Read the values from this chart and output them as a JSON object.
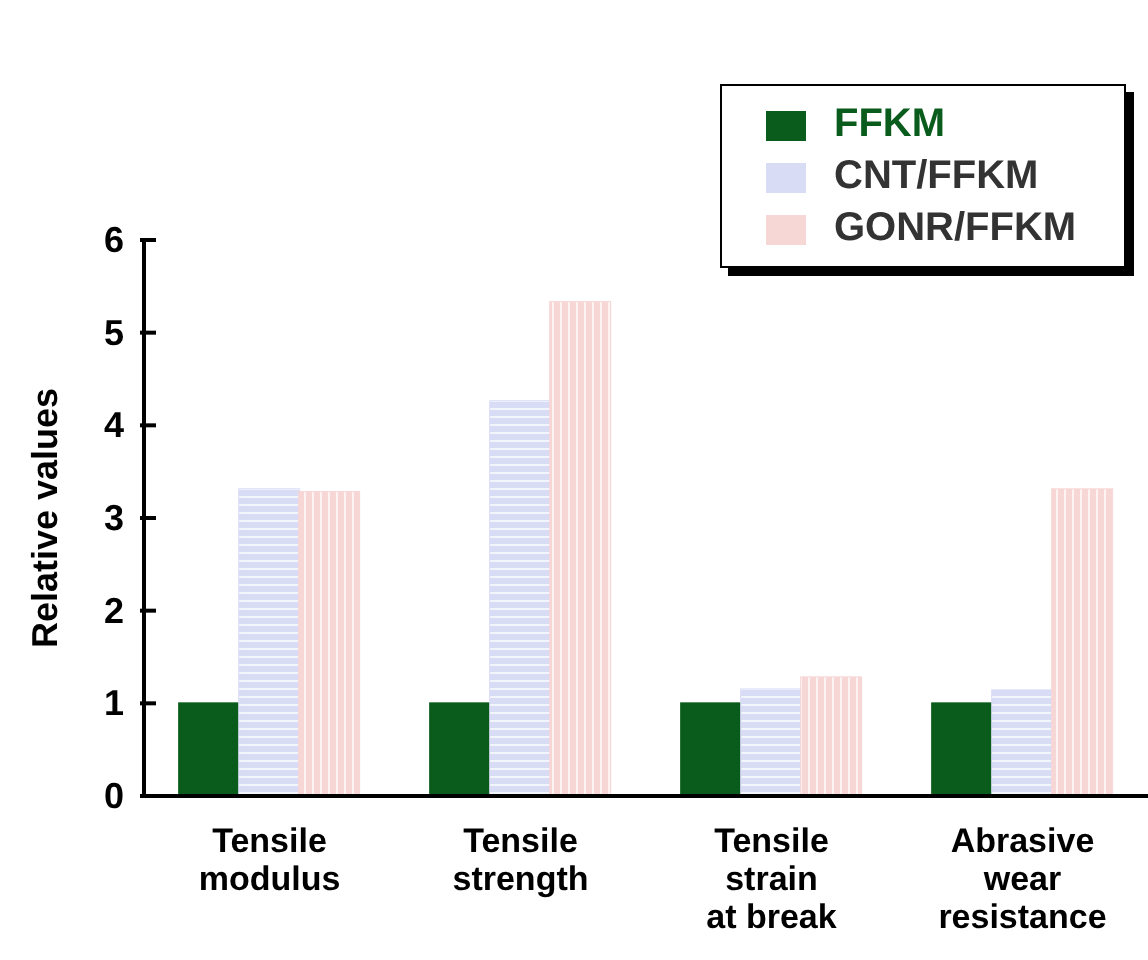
{
  "chart_data": {
    "type": "bar",
    "ylabel": "Relative values",
    "categories": [
      "Tensile\nmodulus",
      "Tensile\nstrength",
      "Tensile\nstrain\nat break",
      "Abrasive\nwear\nresistance"
    ],
    "series": [
      {
        "name": "FFKM",
        "color": "#0a5c1c",
        "values": [
          1,
          1,
          1,
          1
        ]
      },
      {
        "name": "CNT/FFKM",
        "color": "#d8dcf5",
        "values": [
          3.31,
          4.26,
          1.15,
          1.14
        ]
      },
      {
        "name": "GONR/FFKM",
        "color": "#f7d6d6",
        "values": [
          3.28,
          5.33,
          1.28,
          3.31
        ]
      }
    ],
    "ylim": [
      0,
      6
    ],
    "yticks": [
      0,
      1,
      2,
      3,
      4,
      5,
      6
    ],
    "grid": false,
    "legend": "top right"
  }
}
